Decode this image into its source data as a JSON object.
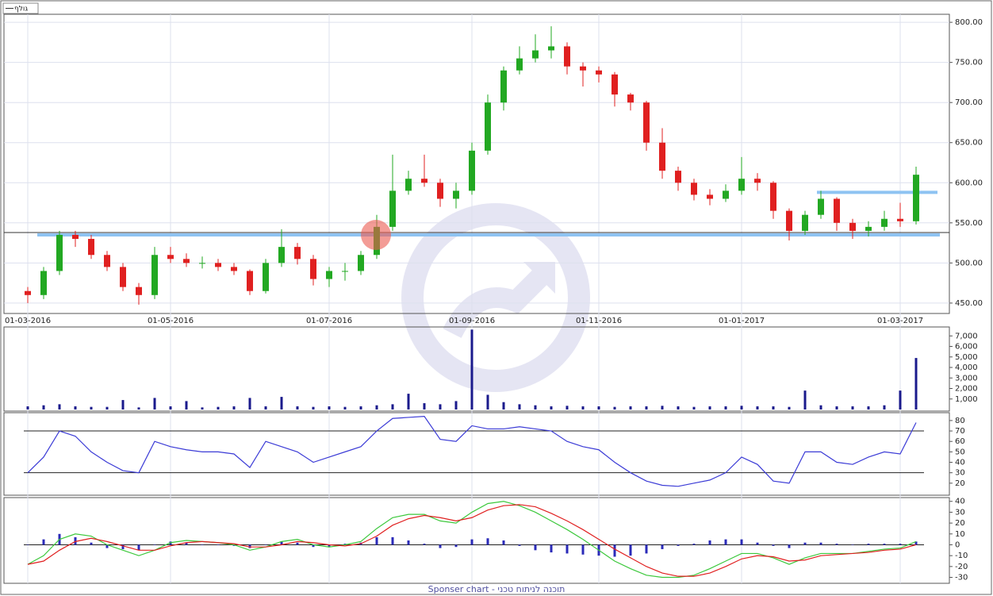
{
  "chart_data": {
    "type": "candlestick",
    "legend_label": "גולף",
    "footer": "Sponser chart - תוכנה לניתוח טכני",
    "categories": [
      "01-03-2016",
      null,
      null,
      null,
      null,
      null,
      null,
      null,
      null,
      "01-05-2016",
      null,
      null,
      null,
      null,
      null,
      null,
      null,
      null,
      null,
      "01-07-2016",
      null,
      null,
      null,
      null,
      null,
      null,
      null,
      null,
      "01-09-2016",
      null,
      null,
      null,
      null,
      null,
      null,
      null,
      "01-11-2016",
      null,
      null,
      null,
      null,
      null,
      null,
      null,
      null,
      "01-01-2017",
      null,
      null,
      null,
      null,
      null,
      null,
      null,
      null,
      null,
      "01-03-2017",
      null
    ],
    "ohlc": [
      [
        465,
        470,
        450,
        460
      ],
      [
        460,
        495,
        455,
        490
      ],
      [
        490,
        540,
        485,
        535
      ],
      [
        535,
        540,
        520,
        530
      ],
      [
        530,
        535,
        505,
        510
      ],
      [
        510,
        515,
        490,
        495
      ],
      [
        495,
        500,
        465,
        470
      ],
      [
        470,
        475,
        448,
        460
      ],
      [
        460,
        520,
        455,
        510
      ],
      [
        510,
        520,
        500,
        505
      ],
      [
        505,
        512,
        495,
        500
      ],
      [
        500,
        508,
        493,
        500
      ],
      [
        500,
        505,
        490,
        495
      ],
      [
        495,
        500,
        485,
        490
      ],
      [
        490,
        492,
        460,
        465
      ],
      [
        465,
        505,
        462,
        500
      ],
      [
        500,
        542,
        495,
        520
      ],
      [
        520,
        525,
        498,
        505
      ],
      [
        505,
        510,
        472,
        480
      ],
      [
        480,
        495,
        470,
        490
      ],
      [
        490,
        500,
        478,
        490
      ],
      [
        490,
        515,
        485,
        510
      ],
      [
        510,
        560,
        505,
        545
      ],
      [
        545,
        635,
        540,
        590
      ],
      [
        590,
        615,
        585,
        605
      ],
      [
        605,
        635,
        595,
        600
      ],
      [
        600,
        605,
        570,
        580
      ],
      [
        580,
        600,
        568,
        590
      ],
      [
        590,
        650,
        585,
        640
      ],
      [
        640,
        710,
        635,
        700
      ],
      [
        700,
        745,
        690,
        740
      ],
      [
        740,
        770,
        735,
        755
      ],
      [
        755,
        785,
        750,
        765
      ],
      [
        765,
        795,
        755,
        770
      ],
      [
        770,
        775,
        735,
        745
      ],
      [
        745,
        750,
        720,
        740
      ],
      [
        740,
        745,
        725,
        735
      ],
      [
        735,
        738,
        695,
        710
      ],
      [
        710,
        712,
        690,
        700
      ],
      [
        700,
        702,
        640,
        650
      ],
      [
        650,
        668,
        605,
        615
      ],
      [
        615,
        620,
        590,
        600
      ],
      [
        600,
        605,
        578,
        585
      ],
      [
        585,
        592,
        572,
        580
      ],
      [
        580,
        598,
        576,
        590
      ],
      [
        590,
        632,
        585,
        605
      ],
      [
        605,
        612,
        590,
        600
      ],
      [
        600,
        602,
        555,
        565
      ],
      [
        565,
        568,
        528,
        540
      ],
      [
        540,
        565,
        535,
        560
      ],
      [
        560,
        590,
        555,
        580
      ],
      [
        580,
        582,
        540,
        550
      ],
      [
        550,
        555,
        530,
        540
      ],
      [
        540,
        552,
        533,
        545
      ],
      [
        545,
        565,
        540,
        555
      ],
      [
        555,
        575,
        545,
        552
      ],
      [
        552,
        620,
        548,
        610
      ]
    ],
    "up_color": "#22a822",
    "down_color": "#e02020",
    "ylim": [
      440,
      810
    ],
    "yticks": [
      {
        "value": 450,
        "label": "450.00"
      },
      {
        "value": 500,
        "label": "500.00"
      },
      {
        "value": 550,
        "label": "550.00"
      },
      {
        "value": 600,
        "label": "600.00"
      },
      {
        "value": 650,
        "label": "650.00"
      },
      {
        "value": 700,
        "label": "700.00"
      },
      {
        "value": 750,
        "label": "750.00"
      },
      {
        "value": 800,
        "label": "800.00"
      }
    ],
    "grid": true,
    "hlines": [
      {
        "value": 535,
        "color": "#8ec3f2"
      },
      {
        "value": 538,
        "color": "#333333"
      },
      {
        "value": 588,
        "color": "#8ec3f2"
      }
    ],
    "volume": {
      "values": [
        300,
        400,
        500,
        300,
        250,
        250,
        900,
        200,
        1100,
        300,
        800,
        200,
        250,
        300,
        1100,
        300,
        1200,
        300,
        250,
        300,
        250,
        300,
        400,
        500,
        1500,
        600,
        500,
        800,
        7600,
        1400,
        700,
        500,
        400,
        300,
        350,
        300,
        300,
        250,
        300,
        300,
        350,
        300,
        250,
        300,
        300,
        350,
        300,
        300,
        250,
        1800,
        400,
        300,
        300,
        300,
        400,
        1800,
        4900
      ],
      "color": "#1a1a8c",
      "ylim": [
        0,
        7700
      ],
      "yticks": [
        {
          "value": 1000,
          "label": "1,000"
        },
        {
          "value": 2000,
          "label": "2,000"
        },
        {
          "value": 3000,
          "label": "3,000"
        },
        {
          "value": 4000,
          "label": "4,000"
        },
        {
          "value": 5000,
          "label": "5,000"
        },
        {
          "value": 6000,
          "label": "6,000"
        },
        {
          "value": 7000,
          "label": "7,000"
        }
      ]
    },
    "rsi": {
      "values": [
        30,
        45,
        70,
        65,
        50,
        40,
        32,
        30,
        60,
        55,
        52,
        50,
        50,
        48,
        35,
        60,
        55,
        50,
        40,
        45,
        50,
        55,
        70,
        82,
        83,
        84,
        62,
        60,
        75,
        72,
        72,
        74,
        72,
        70,
        60,
        55,
        52,
        40,
        30,
        22,
        18,
        17,
        20,
        23,
        30,
        45,
        38,
        22,
        20,
        50,
        50,
        40,
        38,
        45,
        50,
        48,
        78
      ],
      "color": "#3b3bd6",
      "ylim": [
        10,
        86
      ],
      "yticks": [
        20,
        30,
        40,
        50,
        60,
        70,
        80
      ],
      "levels": [
        30,
        70
      ]
    },
    "macd": {
      "ylim": [
        -34,
        42
      ],
      "yticks": [
        -30,
        -20,
        -10,
        0,
        10,
        20,
        30,
        40
      ],
      "series": [
        {
          "color": "#3cc83c",
          "values": [
            -18,
            -10,
            5,
            10,
            8,
            0,
            -5,
            -10,
            -5,
            2,
            4,
            3,
            2,
            0,
            -5,
            -2,
            3,
            5,
            0,
            -2,
            0,
            3,
            15,
            25,
            28,
            28,
            22,
            20,
            30,
            38,
            40,
            36,
            30,
            22,
            14,
            5,
            -5,
            -15,
            -22,
            -28,
            -30,
            -30,
            -28,
            -22,
            -15,
            -8,
            -8,
            -12,
            -18,
            -12,
            -8,
            -8,
            -8,
            -6,
            -4,
            -3,
            3
          ]
        },
        {
          "color": "#e02020",
          "values": [
            -18,
            -15,
            -5,
            3,
            6,
            3,
            -1,
            -5,
            -5,
            -1,
            2,
            3,
            2,
            1,
            -2,
            -2,
            0,
            3,
            2,
            0,
            -1,
            1,
            8,
            18,
            24,
            27,
            25,
            22,
            25,
            32,
            36,
            37,
            35,
            29,
            22,
            14,
            5,
            -4,
            -12,
            -20,
            -26,
            -29,
            -29,
            -26,
            -20,
            -13,
            -10,
            -11,
            -15,
            -14,
            -10,
            -9,
            -8,
            -7,
            -5,
            -4,
            0
          ]
        }
      ],
      "histogram": {
        "color": "#2a2ab8",
        "values": [
          0,
          5,
          10,
          7,
          2,
          -3,
          -4,
          -5,
          0,
          3,
          2,
          0,
          0,
          -1,
          -3,
          0,
          3,
          2,
          -2,
          -2,
          1,
          2,
          7,
          7,
          4,
          1,
          -3,
          -2,
          5,
          6,
          4,
          -1,
          -5,
          -7,
          -8,
          -9,
          -10,
          -11,
          -10,
          -8,
          -4,
          -1,
          1,
          4,
          5,
          5,
          2,
          -1,
          -3,
          2,
          2,
          1,
          0,
          1,
          1,
          1,
          3
        ]
      }
    }
  }
}
